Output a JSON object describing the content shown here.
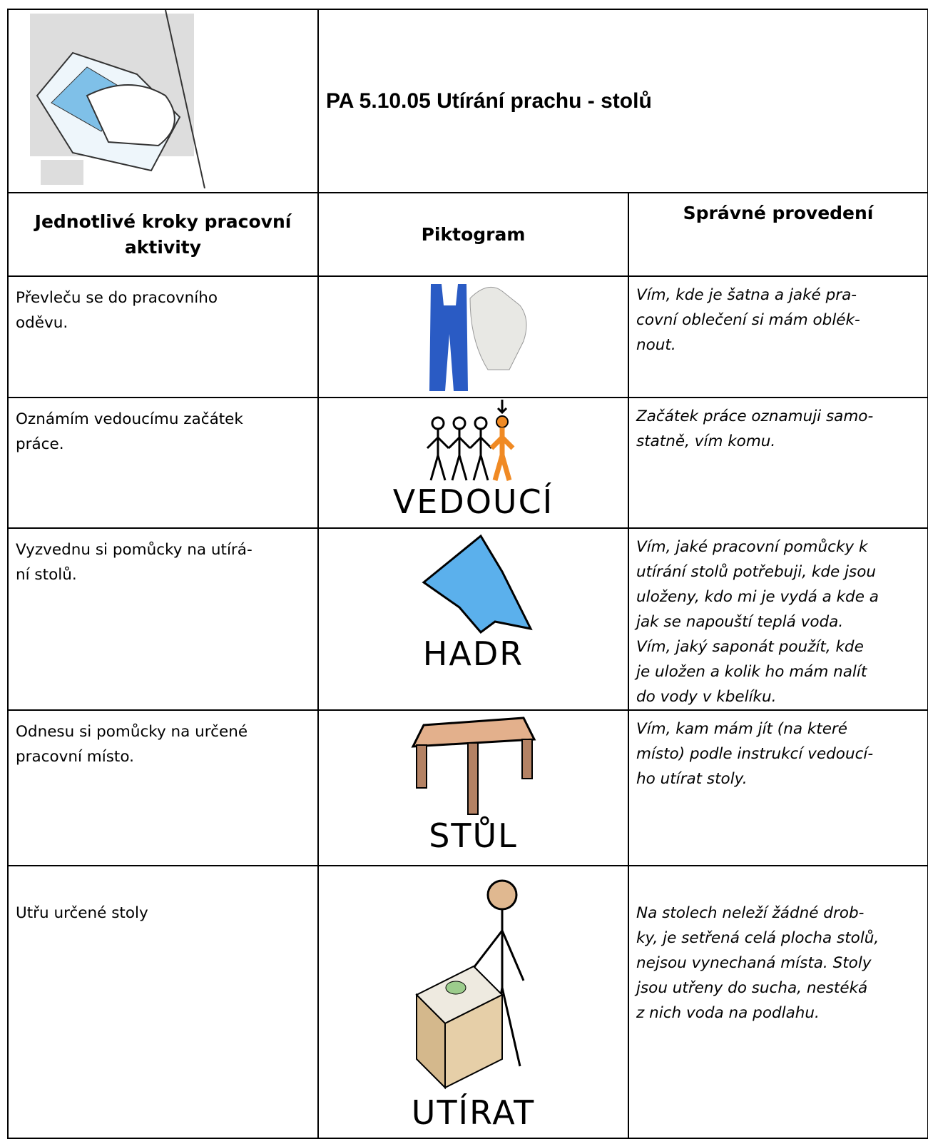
{
  "header": {
    "title": "PA  5.10.05  Utírání prachu - stolů"
  },
  "table": {
    "columns": [
      "Jednotlivé kroky pracovní aktivity",
      "Piktogram",
      "Správné provedení"
    ],
    "rows": [
      {
        "step": "Převleču se do pracovního\noděvu.",
        "description": "Vím, kde je šatna a jaké pra-\ncovní oblečení si mám oblék-\nnout."
      },
      {
        "step": "Oznámím vedoucímu začátek\npráce.",
        "pictogram_label": "VEDOUCÍ",
        "description": "Začátek práce oznamuji samo-\nstatně, vím komu."
      },
      {
        "step": "Vyzvednu si pomůcky na utírá-\nní stolů.",
        "pictogram_label": "HADR",
        "description": "Vím, jaké pracovní pomůcky k\nutírání stolů potřebuji, kde jsou\nuloženy, kdo mi je vydá a kde a\njak se napouští teplá voda.\nVím, jaký saponát použít, kde\nje uložen a kolik ho mám nalít\ndo vody v kbelíku."
      },
      {
        "step": "Odnesu si pomůcky na určené\npracovní místo.",
        "pictogram_label": "STŮL",
        "description": "Vím, kam mám jít (na které\nmísto) podle instrukcí vedoucí-\nho utírat stoly."
      },
      {
        "step": "Utřu určené stoly",
        "pictogram_label": "UTÍRAT",
        "description": "Na stolech neleží žádné drob-\nky, je setřená celá plocha stolů,\nnejsou vynechaná místa. Stoly\njsou utřeny do sucha, nestéká\nz nich voda na podlahu."
      }
    ]
  }
}
